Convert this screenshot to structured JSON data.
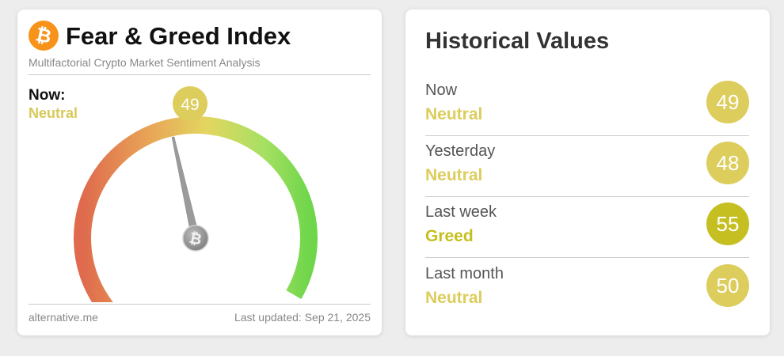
{
  "fng_card": {
    "logo_glyph": "₿",
    "title": "Fear & Greed Index",
    "subtitle": "Multifactorial Crypto Market Sentiment Analysis",
    "now_label": "Now:",
    "now_classification": "Neutral",
    "value": 49,
    "value_text": "49",
    "source": "alternative.me",
    "last_updated": "Last updated: Sep 21, 2025",
    "needle_icon_glyph": "₿"
  },
  "history": {
    "title": "Historical Values",
    "rows": [
      {
        "label": "Now",
        "classification": "Neutral",
        "value": "49",
        "color": "#dccd5c"
      },
      {
        "label": "Yesterday",
        "classification": "Neutral",
        "value": "48",
        "color": "#dccd5c"
      },
      {
        "label": "Last week",
        "classification": "Greed",
        "value": "55",
        "color": "#c6bf22"
      },
      {
        "label": "Last month",
        "classification": "Neutral",
        "value": "50",
        "color": "#dccd5c"
      }
    ]
  },
  "colors": {
    "neutral": "#dccd5c",
    "greed": "#c6bf22",
    "btc_orange": "#f7931a"
  }
}
